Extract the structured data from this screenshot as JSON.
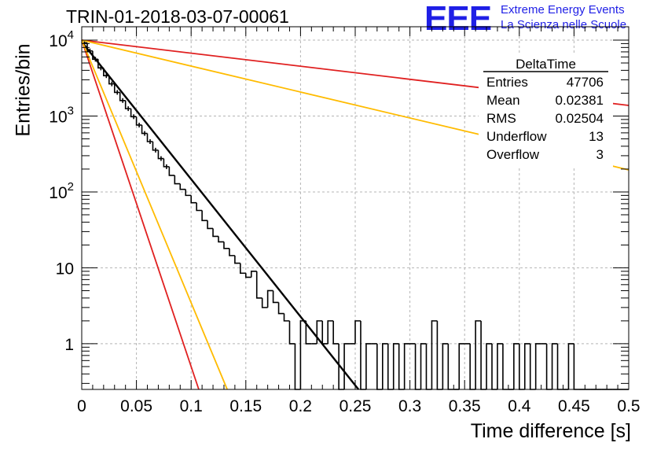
{
  "header": {
    "title": "TRIN-01-2018-03-07-00061",
    "logo": "EEE",
    "logo_line1": "Extreme Energy Events",
    "logo_line2": "La Scienza nelle Scuole"
  },
  "colors": {
    "logo_blue": "#1f1fe6",
    "fit_black": "#000000",
    "red": "#e02020",
    "orange": "#ffbb00",
    "grid": "#b4b4b4"
  },
  "stats": {
    "title": "DeltaTime",
    "rows": [
      {
        "label": "Entries",
        "value": "47706"
      },
      {
        "label": "Mean",
        "value": "0.02381"
      },
      {
        "label": "RMS",
        "value": "0.02504"
      },
      {
        "label": "Underflow",
        "value": "13"
      },
      {
        "label": "Overflow",
        "value": "3"
      }
    ]
  },
  "chart_data": {
    "type": "histogram",
    "title": "TRIN-01-2018-03-07-00061",
    "xlabel": "Time difference [s]",
    "ylabel": "Entries/bin",
    "xlim": [
      0,
      0.5
    ],
    "ylim": [
      0.25,
      15000
    ],
    "yscale": "log",
    "grid": true,
    "legend_placement": "top-right",
    "xticks": [
      "0",
      "0.05",
      "0.1",
      "0.15",
      "0.2",
      "0.25",
      "0.3",
      "0.35",
      "0.4",
      "0.45",
      "0.5"
    ],
    "yticks": [
      {
        "base": "1",
        "exp": ""
      },
      {
        "base": "10",
        "exp": ""
      },
      {
        "base": "10",
        "exp": "2"
      },
      {
        "base": "10",
        "exp": "3"
      },
      {
        "base": "10",
        "exp": "4"
      }
    ],
    "histogram": {
      "bin_edges": [
        0,
        0.005,
        0.01,
        0.015,
        0.02,
        0.025,
        0.03,
        0.035,
        0.04,
        0.045,
        0.05,
        0.055,
        0.06,
        0.065,
        0.07,
        0.075,
        0.08,
        0.085,
        0.09,
        0.095,
        0.1,
        0.105,
        0.11,
        0.115,
        0.12,
        0.125,
        0.13,
        0.135,
        0.14,
        0.145,
        0.15,
        0.155,
        0.16,
        0.165,
        0.17,
        0.175,
        0.18,
        0.185,
        0.19,
        0.195,
        0.2,
        0.205,
        0.21,
        0.215,
        0.22,
        0.225,
        0.23,
        0.235,
        0.24,
        0.245,
        0.25,
        0.255,
        0.26,
        0.265,
        0.27,
        0.275,
        0.28,
        0.285,
        0.29,
        0.295,
        0.3,
        0.305,
        0.31,
        0.315,
        0.32,
        0.325,
        0.33,
        0.335,
        0.34,
        0.345,
        0.35,
        0.355,
        0.36,
        0.365,
        0.37,
        0.375,
        0.38,
        0.385,
        0.39,
        0.395,
        0.4,
        0.405,
        0.41,
        0.415,
        0.42,
        0.425,
        0.43,
        0.435,
        0.44,
        0.445,
        0.45,
        0.455,
        0.46,
        0.465,
        0.47,
        0.475,
        0.48,
        0.485,
        0.49,
        0.495,
        0.5
      ],
      "counts": [
        9200,
        7200,
        5600,
        4300,
        3400,
        2650,
        2050,
        1600,
        1250,
        980,
        760,
        590,
        460,
        355,
        275,
        215,
        165,
        128,
        108,
        90,
        72,
        57,
        42,
        33,
        26,
        22,
        18,
        14.5,
        11.5,
        8.5,
        7.5,
        9,
        4,
        3,
        5,
        3.5,
        2.5,
        2,
        1,
        0,
        2,
        1,
        1,
        2,
        1,
        2,
        1,
        0,
        1,
        1,
        2,
        0,
        1,
        1,
        0,
        1,
        0,
        1,
        0,
        1,
        1,
        0,
        1,
        0,
        2,
        0,
        1,
        0,
        0,
        1,
        1,
        0,
        2,
        0,
        1,
        0,
        1,
        0,
        0,
        1,
        0,
        1,
        0,
        1,
        1,
        0,
        1,
        0,
        0,
        1,
        0,
        0,
        0,
        0,
        0,
        0,
        0,
        0,
        0,
        0
      ]
    },
    "series": [
      {
        "color": "#000000",
        "x": [
          0,
          0.253
        ],
        "y": [
          9500,
          0.25
        ]
      },
      {
        "color": "#e02020",
        "x": [
          0,
          0.107
        ],
        "y": [
          10000,
          0.25
        ]
      },
      {
        "color": "#ffbb00",
        "x": [
          0,
          0.133
        ],
        "y": [
          10000,
          0.25
        ]
      },
      {
        "color": "#e02020",
        "x": [
          0,
          0.5
        ],
        "y": [
          10000,
          1380
        ]
      },
      {
        "color": "#ffbb00",
        "x": [
          0,
          0.5
        ],
        "y": [
          10000,
          195
        ]
      }
    ]
  }
}
